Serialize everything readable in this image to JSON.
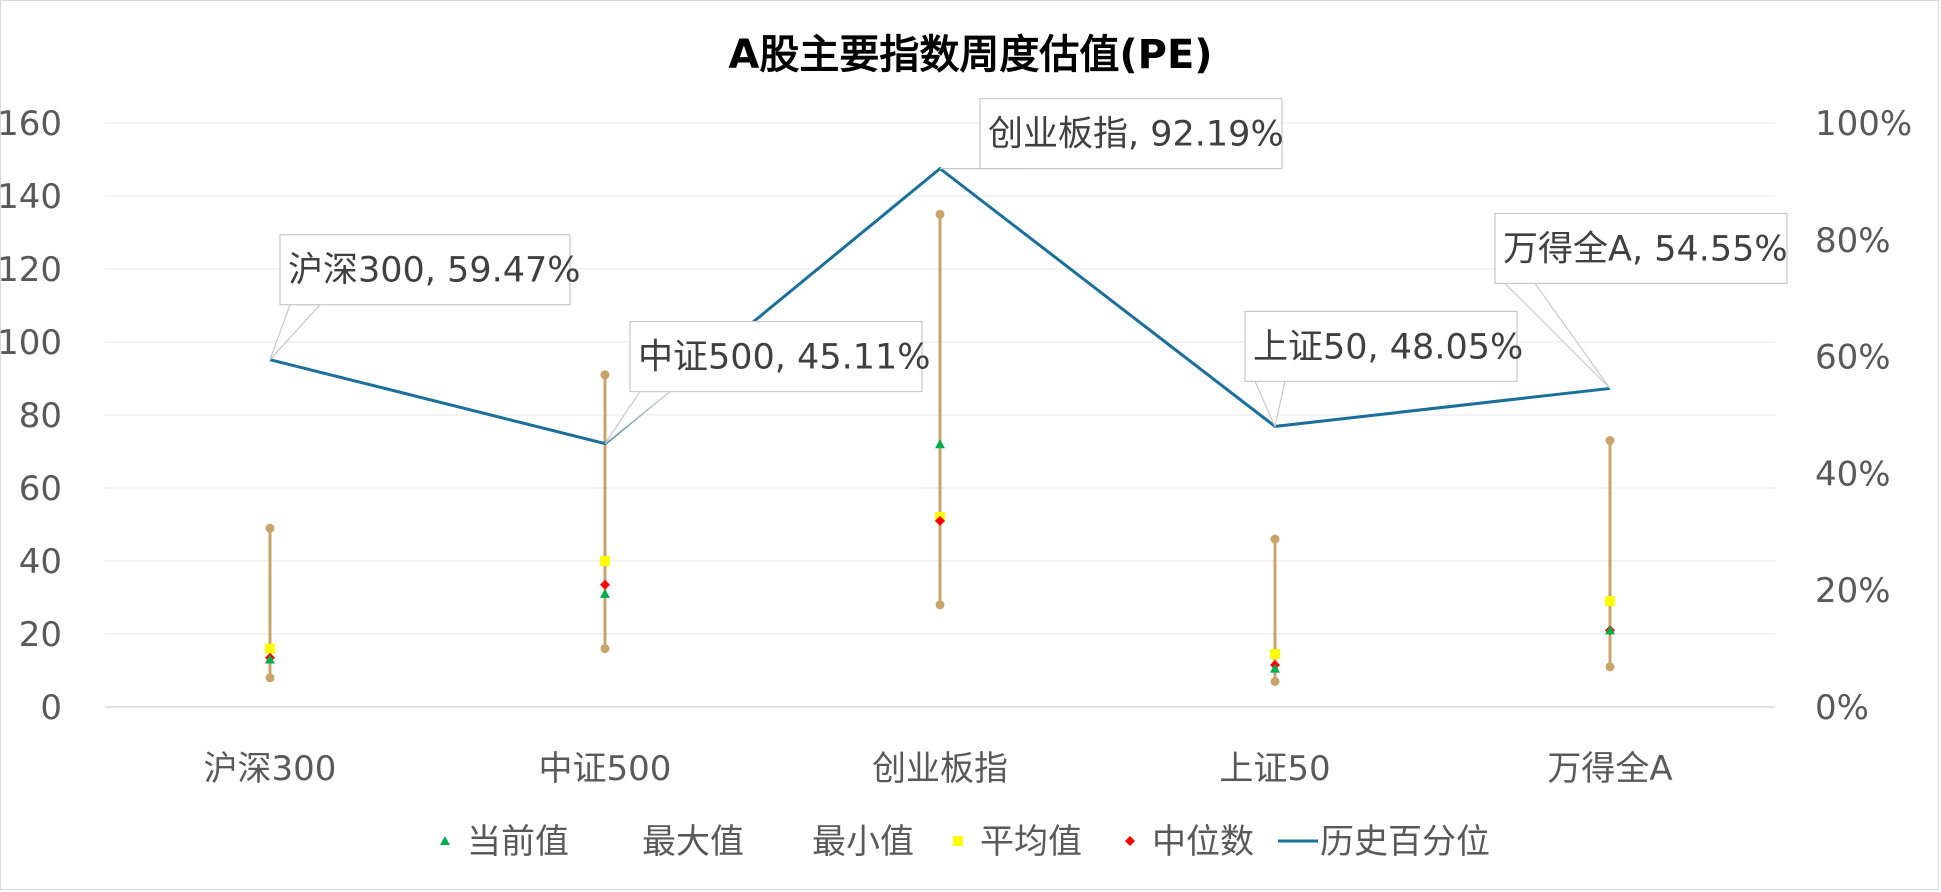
{
  "chart_data": {
    "type": "line",
    "title": "A股主要指数周度估值(PE)",
    "categories": [
      "沪深300",
      "中证500",
      "创业板指",
      "上证50",
      "万得全A"
    ],
    "y_left": {
      "ticks": [
        "0",
        "20",
        "40",
        "60",
        "80",
        "100",
        "120",
        "140",
        "160"
      ],
      "ylim": [
        0,
        160
      ]
    },
    "y_right": {
      "ticks": [
        "0%",
        "20%",
        "40%",
        "60%",
        "80%",
        "100%"
      ],
      "ylim": [
        0,
        1
      ]
    },
    "grid": true,
    "legend_position": "bottom",
    "series": [
      {
        "name": "当前值",
        "axis": "left",
        "marker": "triangle",
        "color": "#00b050",
        "values": [
          13,
          31,
          72,
          10.5,
          21
        ]
      },
      {
        "name": "最大值",
        "axis": "left",
        "marker": "circle",
        "color": "#c9a46a",
        "values": [
          49,
          91,
          135,
          46,
          73
        ]
      },
      {
        "name": "最小值",
        "axis": "left",
        "marker": "circle",
        "color": "#c9a46a",
        "values": [
          8,
          16,
          28,
          7,
          11
        ]
      },
      {
        "name": "平均值",
        "axis": "left",
        "marker": "square",
        "color": "#ffff00",
        "values": [
          16,
          40,
          52,
          14.5,
          29
        ]
      },
      {
        "name": "中位数",
        "axis": "left",
        "marker": "diamond",
        "color": "#ff0000",
        "values": [
          13.5,
          33.5,
          51,
          11.5,
          21
        ]
      },
      {
        "name": "历史百分位",
        "axis": "right",
        "marker": "line",
        "color": "#1a6f9b",
        "values": [
          0.5947,
          0.4511,
          0.9219,
          0.4805,
          0.5455
        ]
      }
    ],
    "annotations": [
      "沪深300, 59.47%",
      "中证500, 45.11%",
      "创业板指, 92.19%",
      "上证50, 48.05%",
      "万得全A, 54.55%"
    ]
  }
}
